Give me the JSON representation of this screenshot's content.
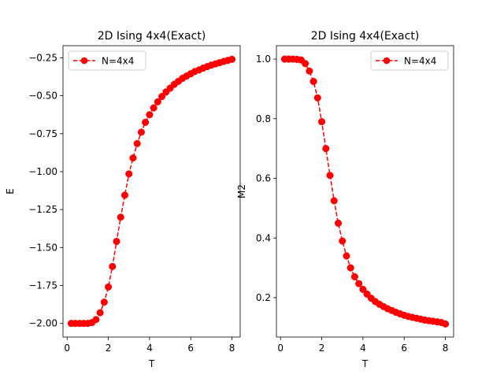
{
  "chart_data": [
    {
      "type": "line",
      "title": "2D Ising 4x4(Exact)",
      "xlabel": "T",
      "ylabel": "E",
      "xlim": [
        -0.2,
        8.4
      ],
      "ylim": [
        -2.09,
        -0.17
      ],
      "xticks": [
        0,
        2,
        4,
        6,
        8
      ],
      "xtick_labels": [
        "0",
        "2",
        "4",
        "6",
        "8"
      ],
      "yticks": [
        -2.0,
        -1.75,
        -1.5,
        -1.25,
        -1.0,
        -0.75,
        -0.5,
        -0.25
      ],
      "ytick_labels": [
        "−2.00",
        "−1.75",
        "−1.50",
        "−1.25",
        "−1.00",
        "−0.75",
        "−0.50",
        "−0.25"
      ],
      "grid": false,
      "legend_position": "top-left",
      "series": [
        {
          "name": "N=4x4",
          "color": "#ff0000",
          "linestyle": "dashed",
          "marker": "circle",
          "x": [
            0.2,
            0.4,
            0.6,
            0.8,
            1.0,
            1.2,
            1.4,
            1.6,
            1.8,
            2.0,
            2.2,
            2.4,
            2.6,
            2.8,
            3.0,
            3.2,
            3.4,
            3.6,
            3.8,
            4.0,
            4.2,
            4.4,
            4.6,
            4.8,
            5.0,
            5.2,
            5.4,
            5.6,
            5.8,
            6.0,
            6.2,
            6.4,
            6.6,
            6.8,
            7.0,
            7.2,
            7.4,
            7.6,
            7.8,
            8.0
          ],
          "y": [
            -2.0,
            -2.0,
            -2.0,
            -2.0,
            -2.0,
            -1.995,
            -1.975,
            -1.93,
            -1.86,
            -1.76,
            -1.625,
            -1.46,
            -1.3,
            -1.155,
            -1.015,
            -0.91,
            -0.815,
            -0.74,
            -0.675,
            -0.625,
            -0.58,
            -0.54,
            -0.505,
            -0.475,
            -0.45,
            -0.425,
            -0.405,
            -0.385,
            -0.37,
            -0.355,
            -0.34,
            -0.33,
            -0.318,
            -0.308,
            -0.298,
            -0.29,
            -0.282,
            -0.274,
            -0.267,
            -0.26
          ]
        }
      ]
    },
    {
      "type": "line",
      "title": "2D Ising 4x4(Exact)",
      "xlabel": "T",
      "ylabel": "M2",
      "xlim": [
        -0.2,
        8.4
      ],
      "ylim": [
        0.068,
        1.045
      ],
      "xticks": [
        0,
        2,
        4,
        6,
        8
      ],
      "xtick_labels": [
        "0",
        "2",
        "4",
        "6",
        "8"
      ],
      "yticks": [
        0.2,
        0.4,
        0.6,
        0.8,
        1.0
      ],
      "ytick_labels": [
        "0.2",
        "0.4",
        "0.6",
        "0.8",
        "1.0"
      ],
      "grid": false,
      "legend_position": "top-right",
      "series": [
        {
          "name": "N=4x4",
          "color": "#ff0000",
          "linestyle": "dashed",
          "marker": "circle",
          "x": [
            0.2,
            0.4,
            0.6,
            0.8,
            1.0,
            1.2,
            1.4,
            1.6,
            1.8,
            2.0,
            2.2,
            2.4,
            2.6,
            2.8,
            3.0,
            3.2,
            3.4,
            3.6,
            3.8,
            4.0,
            4.2,
            4.4,
            4.6,
            4.8,
            5.0,
            5.2,
            5.4,
            5.6,
            5.8,
            6.0,
            6.2,
            6.4,
            6.6,
            6.8,
            7.0,
            7.2,
            7.4,
            7.6,
            7.8,
            8.0
          ],
          "y": [
            1.0,
            1.0,
            1.0,
            0.999,
            0.997,
            0.985,
            0.96,
            0.925,
            0.87,
            0.79,
            0.7,
            0.61,
            0.525,
            0.45,
            0.39,
            0.34,
            0.3,
            0.27,
            0.247,
            0.228,
            0.212,
            0.198,
            0.187,
            0.178,
            0.17,
            0.163,
            0.157,
            0.151,
            0.146,
            0.141,
            0.137,
            0.134,
            0.131,
            0.128,
            0.125,
            0.123,
            0.121,
            0.119,
            0.117,
            0.112
          ]
        }
      ]
    }
  ]
}
